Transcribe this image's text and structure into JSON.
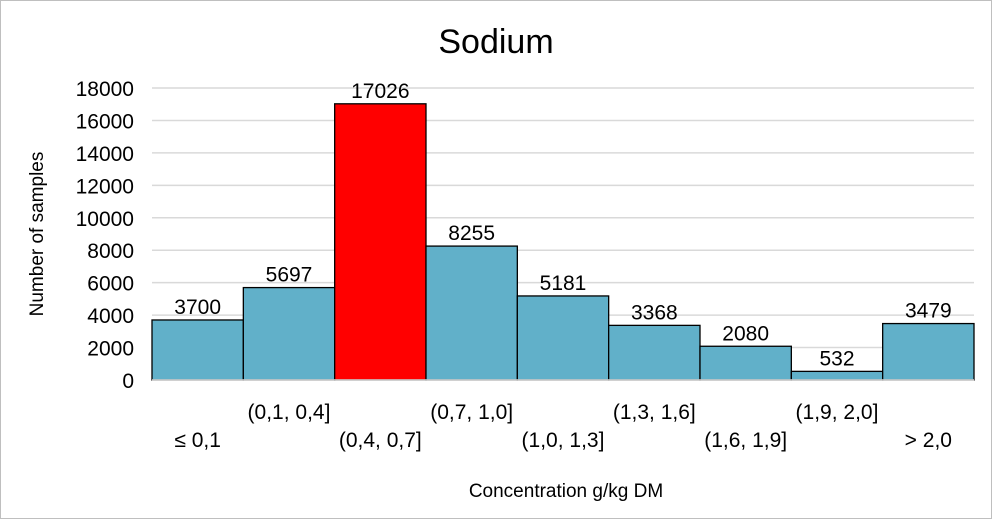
{
  "chart_data": {
    "type": "bar",
    "title": "Sodium",
    "xlabel": "Concentration g/kg DM",
    "ylabel": "Number of samples",
    "categories": [
      "≤ 0,1",
      "(0,1, 0,4]",
      "(0,4, 0,7]",
      "(0,7, 1,0]",
      "(1,0, 1,3]",
      "(1,3, 1,6]",
      "(1,6, 1,9]",
      "(1,9, 2,0]",
      "> 2,0"
    ],
    "values": [
      3700,
      5697,
      17026,
      8255,
      5181,
      3368,
      2080,
      532,
      3479
    ],
    "yticks": [
      "0",
      "2000",
      "4000",
      "6000",
      "8000",
      "10000",
      "12000",
      "14000",
      "16000",
      "18000"
    ],
    "ylim": [
      0,
      18000
    ],
    "grid": true,
    "legend": "none",
    "colors": {
      "default_bar": "#61b0c9",
      "highlight_bar": "#ff0000",
      "bar_outline": "#000000",
      "gridline": "#d9d9d9"
    },
    "highlight_index": 2
  }
}
